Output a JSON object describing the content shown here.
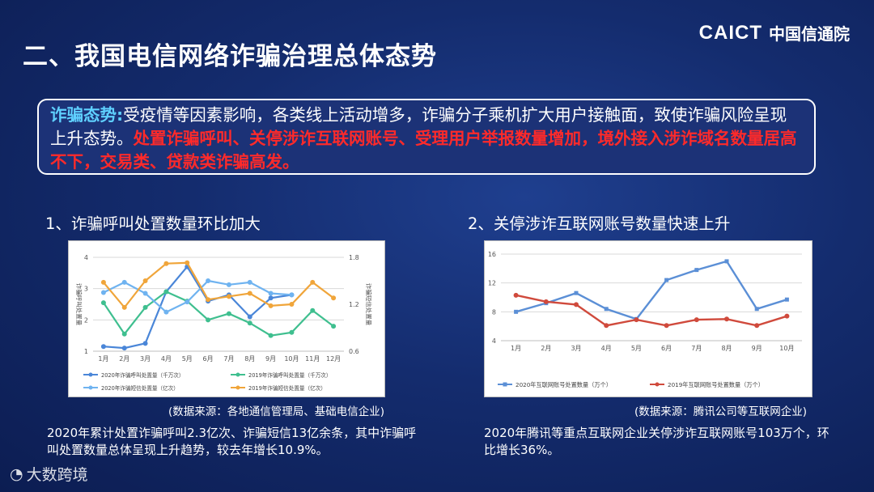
{
  "slide": {
    "title": "二、我国电信网络诈骗治理总体态势",
    "logo": {
      "en": "CAICT",
      "cn": "中国信通院"
    },
    "summary": {
      "label": "诈骗态势:",
      "text": "受疫情等因素影响，各类线上活动增多，诈骗分子乘机扩大用户接触面，致使诈骗风险呈现上升态势。",
      "highlight": "处置诈骗呼叫、关停涉诈互联网账号、受理用户举报数量增加，境外接入涉诈域名数量居高不下，交易类、贷款类诈骗高发。"
    },
    "section1": {
      "title": "1、诈骗呼叫处置数量环比加大",
      "source": "(数据来源：各地通信管理局、基础电信企业)",
      "footnote": "2020年累计处置诈骗呼叫2.3亿次、诈骗短信13亿余条，其中诈骗呼叫处置数量总体呈现上升趋势，较去年增长10.9%。"
    },
    "section2": {
      "title": "2、关停涉诈互联网账号数量快速上升",
      "source": "(数据来源：腾讯公司等互联网企业)",
      "footnote": "2020年腾讯等重点互联网企业关停涉诈互联网账号103万个，环比增长36%。"
    },
    "watermark": "大数跨境"
  },
  "chart_data": [
    {
      "type": "line",
      "categories": [
        "1月",
        "2月",
        "3月",
        "4月",
        "5月",
        "6月",
        "7月",
        "8月",
        "9月",
        "10月",
        "11月",
        "12月"
      ],
      "ylim": [
        1,
        4
      ],
      "yticks": [
        "1",
        "2",
        "3",
        "4"
      ],
      "y2lim": [
        0.6,
        1.8
      ],
      "y2ticks": [
        "0.6",
        "1.2",
        "1.8"
      ],
      "ylabel": "诈骗呼叫处置量",
      "y2label": "诈骗短信处置量",
      "series": [
        {
          "name": "2020年诈骗呼叫处置量（千万次）",
          "axis": "left",
          "color": "#4a86d8",
          "values": [
            1.15,
            1.1,
            1.25,
            2.9,
            3.7,
            2.6,
            2.8,
            2.1,
            2.7,
            2.8,
            null,
            null
          ]
        },
        {
          "name": "2019年诈骗呼叫处置量（千万次）",
          "axis": "left",
          "color": "#3fbf8f",
          "values": [
            2.55,
            1.55,
            2.4,
            2.9,
            2.6,
            2.0,
            2.2,
            1.9,
            1.5,
            1.6,
            2.3,
            1.8
          ]
        },
        {
          "name": "2020年诈骗短信处置量（亿次）",
          "axis": "right",
          "color": "#6fb3f0",
          "values": [
            1.35,
            1.48,
            1.34,
            1.1,
            1.23,
            1.5,
            1.45,
            1.48,
            1.34,
            1.32,
            null,
            null
          ]
        },
        {
          "name": "2019年诈骗短信处置量（亿次）",
          "axis": "right",
          "color": "#f0a53a",
          "values": [
            1.48,
            1.16,
            1.5,
            1.72,
            1.73,
            1.26,
            1.3,
            1.34,
            1.18,
            1.2,
            1.48,
            1.28
          ]
        }
      ]
    },
    {
      "type": "line",
      "categories": [
        "1月",
        "2月",
        "3月",
        "4月",
        "5月",
        "6月",
        "7月",
        "8月",
        "9月",
        "10月"
      ],
      "ylim": [
        4,
        16
      ],
      "yticks": [
        "4",
        "8",
        "12",
        "16"
      ],
      "series": [
        {
          "name": "2020年互联网账号处置数量（万个）",
          "color": "#5b8fd6",
          "values": [
            8.0,
            9.2,
            10.6,
            8.4,
            7.0,
            12.4,
            13.8,
            15.0,
            8.4,
            9.7
          ]
        },
        {
          "name": "2019年互联网账号处置数量（万个）",
          "color": "#d04a3c",
          "values": [
            10.3,
            9.4,
            9.0,
            6.1,
            6.9,
            6.1,
            6.9,
            7.0,
            6.1,
            7.4
          ]
        }
      ]
    }
  ]
}
